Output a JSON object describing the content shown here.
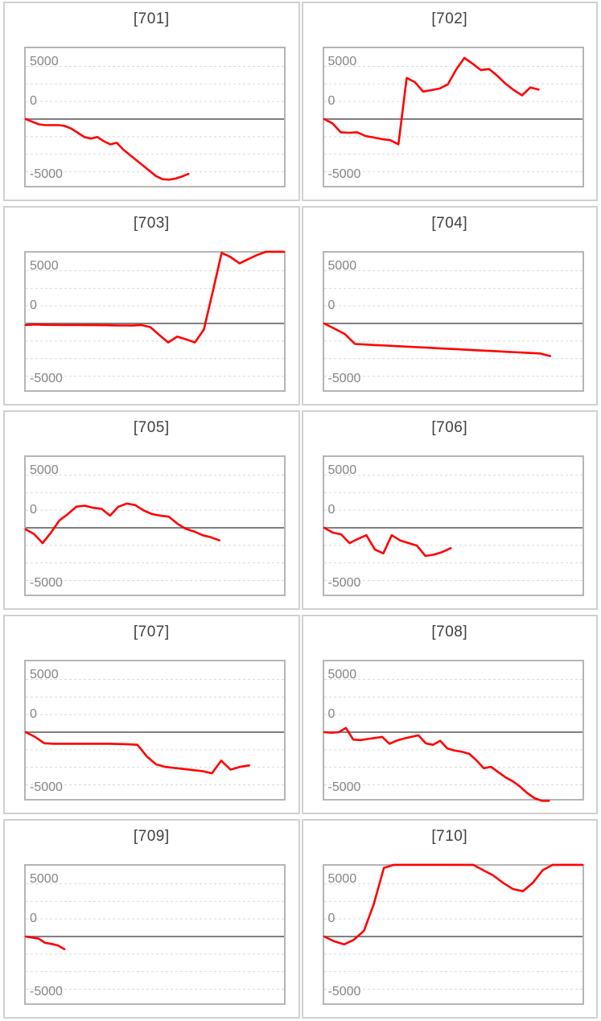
{
  "page": {
    "background": "#ffffff",
    "layout": "5x2 grid of small line charts"
  },
  "style": {
    "line_color": "#ff0000",
    "zero_line_color": "#7f7f7f",
    "grid_color": "#d9d9d9",
    "plot_border_color": "#b5b5b5",
    "tile_border_color": "#d0d0d0",
    "title_color": "#404040",
    "tick_color": "#848484"
  },
  "chart_data": [
    {
      "type": "line",
      "title": "[701]",
      "yticks": [
        "5000",
        "0",
        "-5000"
      ],
      "ylim": [
        -6440,
        6820
      ],
      "grid": "dashed minor lines every 1667, solid zero line",
      "legend_position": "none",
      "series": [
        {
          "name": "701",
          "color": "#ff0000",
          "span_frac": 0.63,
          "values": [
            0,
            -250,
            -500,
            -570,
            -570,
            -570,
            -650,
            -900,
            -1300,
            -1700,
            -1850,
            -1700,
            -2100,
            -2400,
            -2250,
            -2900,
            -3400,
            -3900,
            -4400,
            -4900,
            -5400,
            -5700,
            -5750,
            -5650,
            -5450,
            -5200
          ]
        }
      ]
    },
    {
      "type": "line",
      "title": "[702]",
      "yticks": [
        "5000",
        "0",
        "-5000"
      ],
      "ylim": [
        -6440,
        6820
      ],
      "grid": "dashed minor lines every 1667, solid zero line",
      "legend_position": "none",
      "series": [
        {
          "name": "702",
          "color": "#ff0000",
          "span_frac": 0.83,
          "values": [
            0,
            -400,
            -1250,
            -1300,
            -1250,
            -1600,
            -1750,
            -1900,
            -2000,
            -2400,
            3900,
            3500,
            2600,
            2750,
            2900,
            3300,
            4700,
            5800,
            5250,
            4650,
            4750,
            4100,
            3350,
            2750,
            2250,
            3000,
            2800
          ]
        }
      ]
    },
    {
      "type": "line",
      "title": "[703]",
      "yticks": [
        "5000",
        "0",
        "-5000"
      ],
      "ylim": [
        -6440,
        6820
      ],
      "grid": "dashed minor lines every 1667, solid zero line",
      "legend_position": "none",
      "series": [
        {
          "name": "703",
          "color": "#ff0000",
          "span_frac": 1.0,
          "values": [
            -150,
            -100,
            -130,
            -140,
            -150,
            -150,
            -150,
            -160,
            -160,
            -170,
            -180,
            -190,
            -200,
            -150,
            -350,
            -1100,
            -1800,
            -1250,
            -1500,
            -1800,
            -575,
            3000,
            6700,
            6300,
            5700,
            6100,
            6500,
            6800,
            6800,
            6800
          ]
        }
      ]
    },
    {
      "type": "line",
      "title": "[704]",
      "yticks": [
        "5000",
        "0",
        "-5000"
      ],
      "ylim": [
        -6440,
        6820
      ],
      "grid": "dashed minor lines every 1667, solid zero line",
      "legend_position": "none",
      "series": [
        {
          "name": "704",
          "color": "#ff0000",
          "span_frac": 0.875,
          "values": [
            0,
            -500,
            -1000,
            -1950,
            -2000,
            -2050,
            -2100,
            -2150,
            -2200,
            -2250,
            -2300,
            -2350,
            -2400,
            -2450,
            -2500,
            -2550,
            -2600,
            -2650,
            -2700,
            -2750,
            -2800,
            -2850,
            -3100
          ]
        }
      ]
    },
    {
      "type": "line",
      "title": "[705]",
      "yticks": [
        "5000",
        "0",
        "-5000"
      ],
      "ylim": [
        -6440,
        6820
      ],
      "grid": "dashed minor lines every 1667, solid zero line",
      "legend_position": "none",
      "series": [
        {
          "name": "705",
          "color": "#ff0000",
          "span_frac": 0.75,
          "values": [
            -150,
            -600,
            -1450,
            -450,
            700,
            1300,
            2000,
            2100,
            1900,
            1800,
            1150,
            2000,
            2300,
            2150,
            1650,
            1300,
            1150,
            1050,
            400,
            -100,
            -350,
            -700,
            -900,
            -1200
          ]
        }
      ]
    },
    {
      "type": "line",
      "title": "[706]",
      "yticks": [
        "5000",
        "0",
        "-5000"
      ],
      "ylim": [
        -6440,
        6820
      ],
      "grid": "dashed minor lines every 1667, solid zero line",
      "legend_position": "none",
      "series": [
        {
          "name": "706",
          "color": "#ff0000",
          "span_frac": 0.49,
          "values": [
            0,
            -450,
            -620,
            -1450,
            -1050,
            -700,
            -2050,
            -2430,
            -700,
            -1200,
            -1450,
            -1700,
            -2670,
            -2550,
            -2300,
            -1930
          ]
        }
      ]
    },
    {
      "type": "line",
      "title": "[707]",
      "yticks": [
        "5000",
        "0",
        "-5000"
      ],
      "ylim": [
        -6440,
        6820
      ],
      "grid": "dashed minor lines every 1667, solid zero line",
      "legend_position": "none",
      "series": [
        {
          "name": "707",
          "color": "#ff0000",
          "span_frac": 0.865,
          "values": [
            0,
            -450,
            -1050,
            -1100,
            -1100,
            -1100,
            -1100,
            -1100,
            -1100,
            -1100,
            -1120,
            -1150,
            -1200,
            -2300,
            -3050,
            -3300,
            -3400,
            -3500,
            -3600,
            -3700,
            -3900,
            -2700,
            -3550,
            -3300,
            -3150
          ]
        }
      ]
    },
    {
      "type": "line",
      "title": "[708]",
      "yticks": [
        "5000",
        "0",
        "-5000"
      ],
      "ylim": [
        -6440,
        6820
      ],
      "grid": "dashed minor lines every 1667, solid zero line",
      "legend_position": "none",
      "series": [
        {
          "name": "708",
          "color": "#ff0000",
          "span_frac": 0.87,
          "values": [
            0,
            -50,
            0,
            400,
            -700,
            -750,
            -650,
            -550,
            -450,
            -1100,
            -800,
            -600,
            -450,
            -300,
            -1050,
            -1200,
            -820,
            -1550,
            -1750,
            -1860,
            -2050,
            -2670,
            -3420,
            -3290,
            -3790,
            -4280,
            -4650,
            -5150,
            -5770,
            -6260,
            -6510,
            -6510
          ]
        }
      ]
    },
    {
      "type": "line",
      "title": "[709]",
      "yticks": [
        "5000",
        "0",
        "-5000"
      ],
      "ylim": [
        -6440,
        6820
      ],
      "grid": "dashed minor lines every 1667, solid zero line",
      "legend_position": "none",
      "series": [
        {
          "name": "709",
          "color": "#ff0000",
          "span_frac": 0.15,
          "values": [
            0,
            -100,
            -200,
            -600,
            -700,
            -850,
            -1200
          ]
        }
      ]
    },
    {
      "type": "line",
      "title": "[710]",
      "yticks": [
        "5000",
        "0",
        "-5000"
      ],
      "ylim": [
        -6440,
        6820
      ],
      "grid": "dashed minor lines every 1667, solid zero line",
      "legend_position": "none",
      "series": [
        {
          "name": "710",
          "color": "#ff0000",
          "span_frac": 1.0,
          "values": [
            0,
            -450,
            -750,
            -300,
            550,
            3100,
            6500,
            6800,
            6800,
            6800,
            6800,
            6800,
            6800,
            6800,
            6800,
            6800,
            6300,
            5800,
            5100,
            4500,
            4300,
            5100,
            6300,
            6800,
            6800,
            6800,
            6800
          ]
        }
      ]
    }
  ]
}
